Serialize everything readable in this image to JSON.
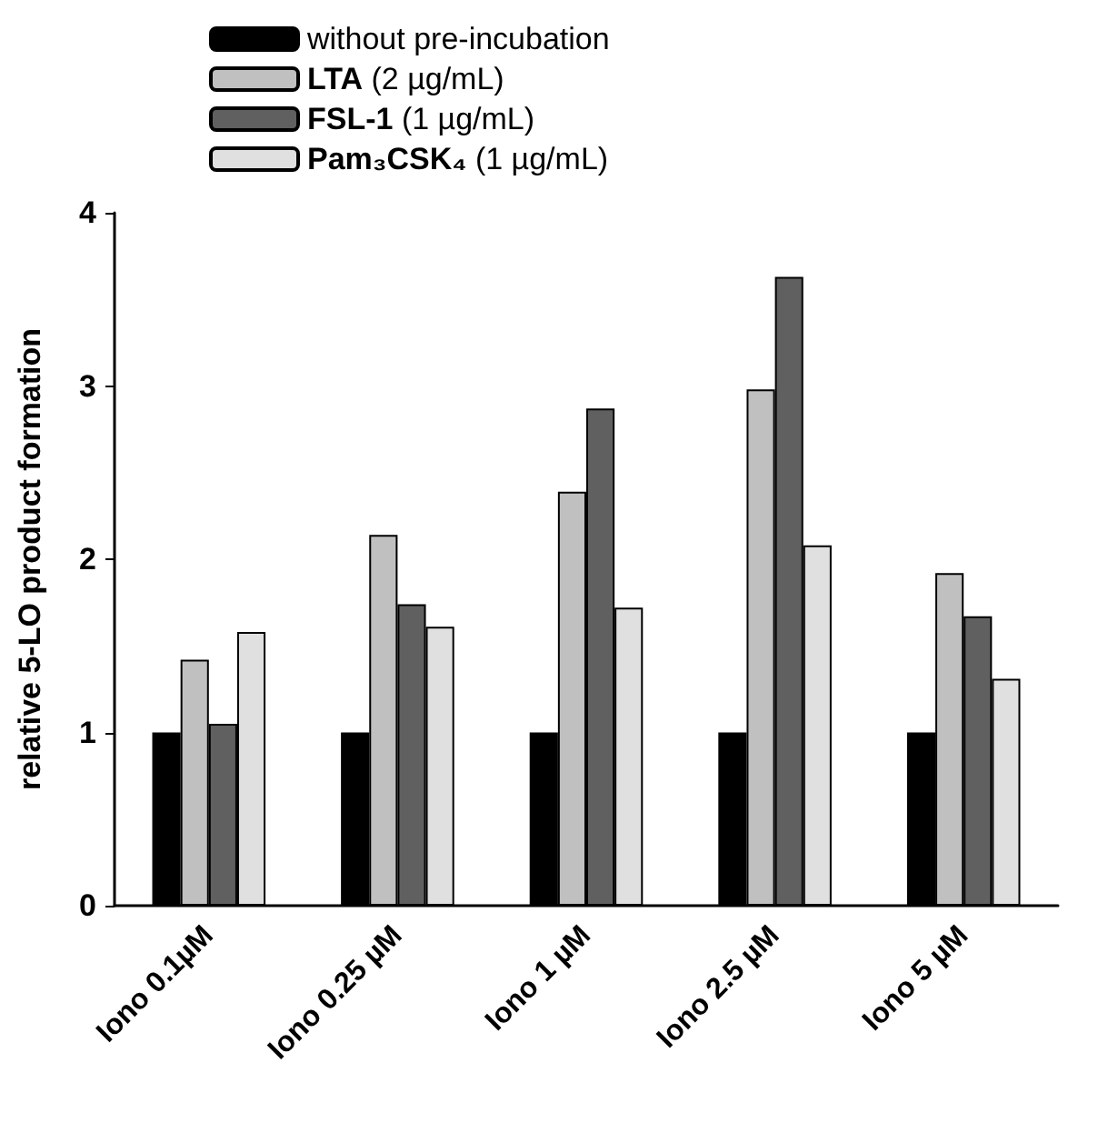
{
  "chart_data": {
    "type": "bar",
    "ylabel": "relative 5-LO product formation",
    "categories": [
      "Iono 0.1µM",
      "Iono 0.25 µM",
      "Iono 1 µM",
      "Iono 2.5 µM",
      "Iono 5 µM"
    ],
    "series": [
      {
        "name": "without pre-incubation",
        "color": "#000000",
        "values": [
          1,
          1,
          1,
          1,
          1
        ]
      },
      {
        "name": "LTA (2 µg/mL)",
        "color": "#c0c0c0",
        "values": [
          1.42,
          2.14,
          2.39,
          2.98,
          1.92
        ]
      },
      {
        "name": "FSL-1 (1 µg/mL)",
        "color": "#606060",
        "values": [
          1.05,
          1.74,
          2.87,
          3.63,
          1.67
        ]
      },
      {
        "name": "Pam₃CSK₄ (1 µg/mL)",
        "color": "#e0e0e0",
        "values": [
          1.58,
          1.61,
          1.72,
          2.08,
          1.31
        ]
      }
    ],
    "ylim": [
      0,
      4
    ],
    "yticks": [
      0,
      1,
      2,
      3,
      4
    ],
    "grid": false,
    "legend": "top left"
  }
}
